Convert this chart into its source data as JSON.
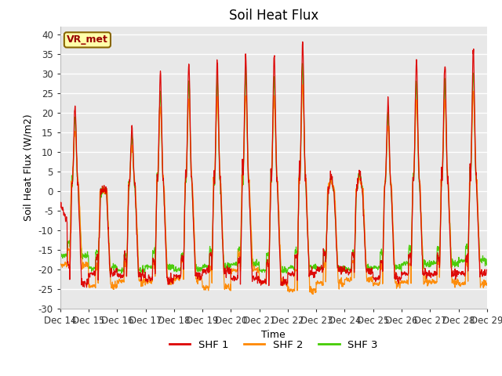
{
  "title": "Soil Heat Flux",
  "ylabel": "Soil Heat Flux (W/m2)",
  "xlabel": "Time",
  "ylim": [
    -30,
    42
  ],
  "bg_color": "#e8e8e8",
  "fig_color": "#ffffff",
  "shf1_color": "#dd0000",
  "shf2_color": "#ff8800",
  "shf3_color": "#44cc00",
  "vr_met_label": "VR_met",
  "xtick_labels": [
    "Dec 14",
    "Dec 15",
    "Dec 16",
    "Dec 17",
    "Dec 18",
    "Dec 19",
    "Dec 20",
    "Dec 21",
    "Dec 22",
    "Dec 23",
    "Dec 24",
    "Dec 25",
    "Dec 26",
    "Dec 27",
    "Dec 28",
    "Dec 29"
  ],
  "ytick_positions": [
    -30,
    -25,
    -20,
    -15,
    -10,
    -5,
    0,
    5,
    10,
    15,
    20,
    25,
    30,
    35,
    40
  ],
  "title_fontsize": 12,
  "label_fontsize": 9,
  "tick_fontsize": 8.5,
  "day_peaks_shf1": [
    22,
    0,
    16,
    30,
    33,
    33,
    35,
    34,
    38,
    4,
    5,
    23,
    33,
    33,
    36
  ],
  "night_base": -22,
  "pts_per_day": 96
}
